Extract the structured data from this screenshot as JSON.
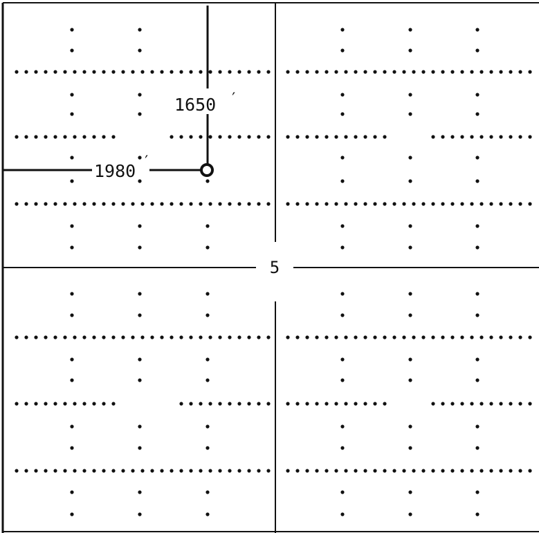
{
  "map": {
    "section_number": "5",
    "well_location": {
      "north_line_distance": "1650",
      "west_line_distance": "1980",
      "distance_unit_mark": "′"
    },
    "colors": {
      "line": "#111111",
      "background": "#ffffff"
    },
    "well_symbol": "open-circle"
  }
}
